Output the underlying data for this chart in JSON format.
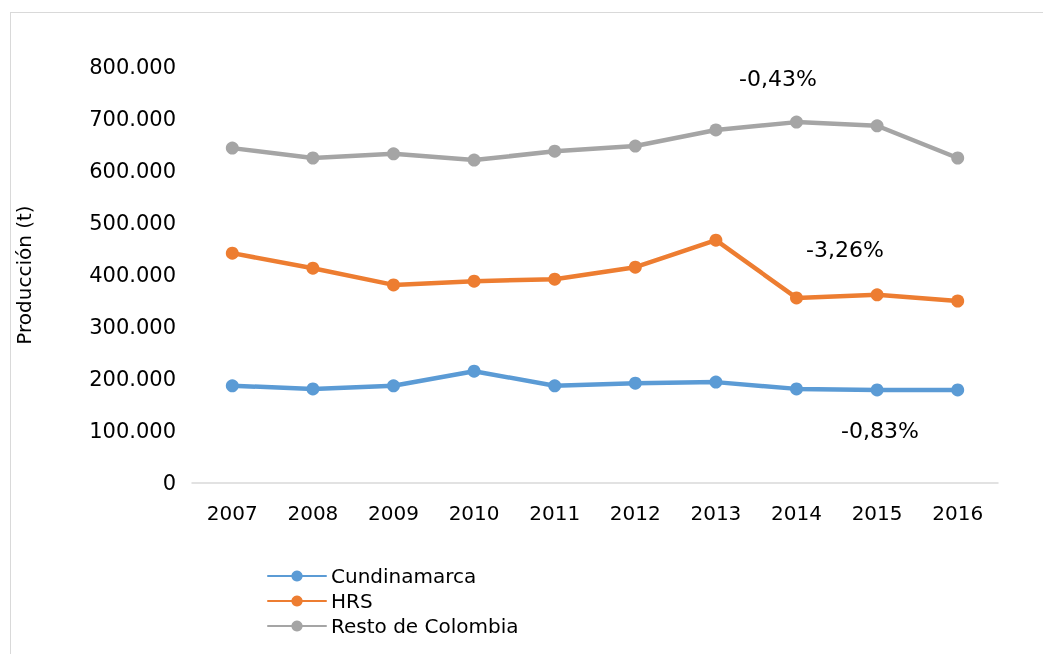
{
  "chart_data": {
    "type": "line",
    "ylabel": "Producción (t)",
    "categories": [
      "2007",
      "2008",
      "2009",
      "2010",
      "2011",
      "2012",
      "2013",
      "2014",
      "2015",
      "2016"
    ],
    "series": [
      {
        "name": "Cundinamarca",
        "color": "#5b9bd5",
        "values": [
          187000,
          181000,
          187000,
          215000,
          187000,
          192000,
          194000,
          181000,
          179000,
          179000
        ]
      },
      {
        "name": "HRS",
        "color": "#ed7d31",
        "values": [
          442000,
          413000,
          381000,
          388000,
          392000,
          415000,
          467000,
          356000,
          362000,
          350000
        ]
      },
      {
        "name": "Resto de Colombia",
        "color": "#a5a5a5",
        "values": [
          644000,
          625000,
          633000,
          621000,
          638000,
          648000,
          679000,
          694000,
          687000,
          625000
        ]
      }
    ],
    "ylim": [
      0,
      800000
    ],
    "yticks": [
      0,
      {
        "value": 100000,
        "label": "100.000"
      },
      {
        "value": 200000,
        "label": "200.000"
      },
      {
        "value": 300000,
        "label": "300.000"
      },
      {
        "value": 400000,
        "label": "400.000"
      },
      {
        "value": 500000,
        "label": "500.000"
      },
      {
        "value": 600000,
        "label": "600.000"
      },
      {
        "value": 700000,
        "label": "700.000"
      },
      {
        "value": 800000,
        "label": "800.000"
      }
    ],
    "annotations": [
      "-0,43%",
      "-3,26%",
      "-0,83%"
    ],
    "grid": false,
    "legend": "bottom",
    "marker": "circle",
    "line_style": "solid"
  }
}
